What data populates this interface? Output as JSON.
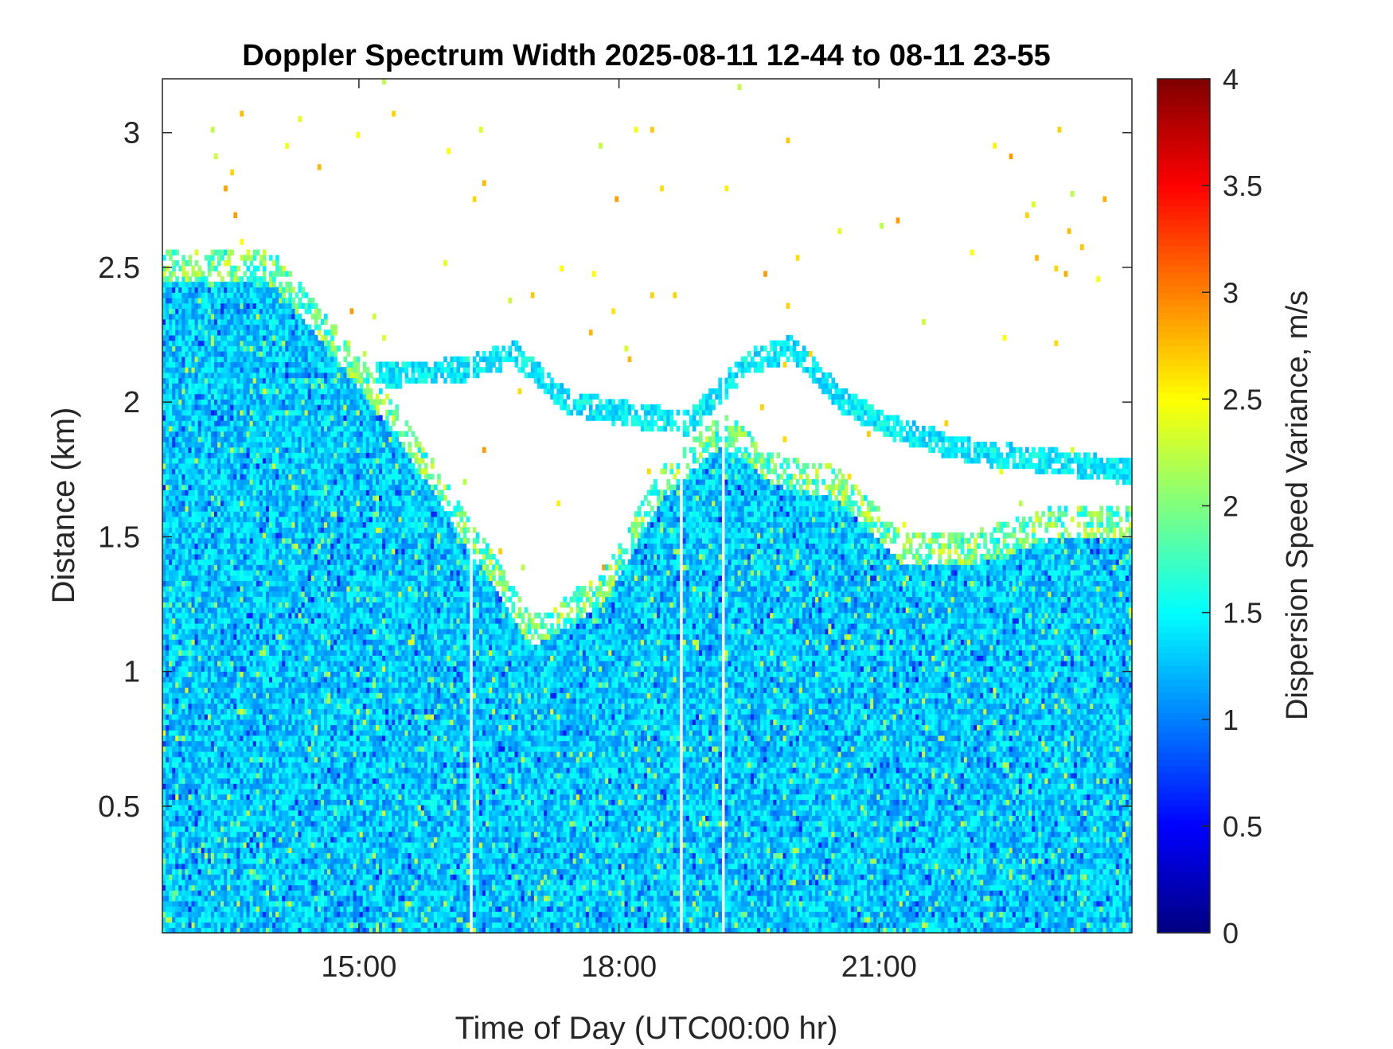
{
  "chart_data": {
    "type": "heatmap",
    "title": "Doppler Spectrum Width 2025-08-11 12-44 to 08-11 23-55",
    "xlabel": "Time of Day (UTC00:00 hr)",
    "ylabel": "Distance (km)",
    "colorbar_label": "Dispersion Speed Variance, m/s",
    "x_range_hours": [
      12.733,
      23.917
    ],
    "y_range_km": [
      0.03,
      3.2
    ],
    "x_ticks": [
      {
        "value": 15,
        "label": "15:00"
      },
      {
        "value": 18,
        "label": "18:00"
      },
      {
        "value": 21,
        "label": "21:00"
      }
    ],
    "y_ticks": [
      {
        "value": 0.5,
        "label": "0.5"
      },
      {
        "value": 1,
        "label": "1"
      },
      {
        "value": 1.5,
        "label": "1.5"
      },
      {
        "value": 2,
        "label": "2"
      },
      {
        "value": 2.5,
        "label": "2.5"
      },
      {
        "value": 3,
        "label": "3"
      }
    ],
    "colorbar_range": [
      0,
      4
    ],
    "colorbar_ticks": [
      {
        "value": 0,
        "label": "0"
      },
      {
        "value": 0.5,
        "label": "0.5"
      },
      {
        "value": 1,
        "label": "1"
      },
      {
        "value": 1.5,
        "label": "1.5"
      },
      {
        "value": 2,
        "label": "2"
      },
      {
        "value": 2.5,
        "label": "2.5"
      },
      {
        "value": 3,
        "label": "3"
      },
      {
        "value": 3.5,
        "label": "3.5"
      },
      {
        "value": 4,
        "label": "4"
      }
    ],
    "colormap": "jet",
    "typical_value_range": [
      1.0,
      1.6
    ],
    "signal_top_km": [
      [
        12.733,
        2.5
      ],
      [
        14.0,
        2.5
      ],
      [
        14.8,
        2.2
      ],
      [
        15.5,
        1.9
      ],
      [
        16.2,
        1.55
      ],
      [
        17.0,
        1.15
      ],
      [
        17.8,
        1.3
      ],
      [
        18.5,
        1.7
      ],
      [
        19.2,
        1.9
      ],
      [
        19.8,
        1.75
      ],
      [
        20.5,
        1.7
      ],
      [
        21.3,
        1.45
      ],
      [
        22.0,
        1.45
      ],
      [
        23.0,
        1.55
      ],
      [
        23.917,
        1.55
      ]
    ],
    "upper_layer_km": [
      [
        15.2,
        2.1
      ],
      [
        16.2,
        2.12
      ],
      [
        16.8,
        2.18
      ],
      [
        17.4,
        2.0
      ],
      [
        18.2,
        1.95
      ],
      [
        18.8,
        1.92
      ],
      [
        19.5,
        2.15
      ],
      [
        20.0,
        2.2
      ],
      [
        20.6,
        2.0
      ],
      [
        21.2,
        1.9
      ],
      [
        22.0,
        1.82
      ],
      [
        23.0,
        1.78
      ],
      [
        23.917,
        1.74
      ]
    ],
    "data_gaps_hours": [
      16.3,
      18.72,
      19.2
    ]
  }
}
